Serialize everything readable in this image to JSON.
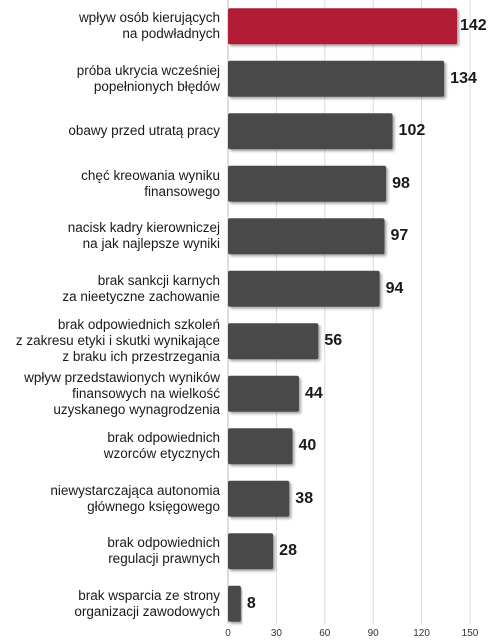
{
  "chart_data": {
    "type": "bar",
    "orientation": "horizontal",
    "categories": [
      "wpływ osób kierujących\nna podwładnych",
      "próba ukrycia wcześniej\npopełnionych błędów",
      "obawy przed utratą pracy",
      "chęć kreowania wyniku\nfinansowego",
      "nacisk kadry kierowniczej\nna jak najlepsze wyniki",
      "brak sankcji karnych\nza nieetyczne zachowanie",
      "brak odpowiednich szkoleń\nz zakresu etyki i skutki wynikające\nz braku ich przestrzegania",
      "wpływ przedstawionych wyników\nfinansowych na wielkość\nuzyskanego wynagrodzenia",
      "brak odpowiednich\nwzorców etycznych",
      "niewystarczająca autonomia\ngłównego księgowego",
      "brak odpowiednich\nregulacji prawnych",
      "brak wsparcia ze strony\norganizacji zawodowych"
    ],
    "values": [
      142,
      134,
      102,
      98,
      97,
      94,
      56,
      44,
      40,
      38,
      28,
      8
    ],
    "value_labels": [
      "142",
      "134",
      "102",
      "98",
      "97",
      "94",
      "56",
      "44",
      "40",
      "38",
      "28",
      "8"
    ],
    "xlim": [
      0,
      150
    ],
    "xticks": [
      "0",
      "30",
      "60",
      "90",
      "120",
      "150"
    ],
    "title": "",
    "xlabel": "",
    "ylabel": "",
    "grid": true,
    "colors": {
      "highlight": "#b31b34",
      "bar": "#4a4a4a",
      "grid": "#dcdcdc"
    }
  }
}
